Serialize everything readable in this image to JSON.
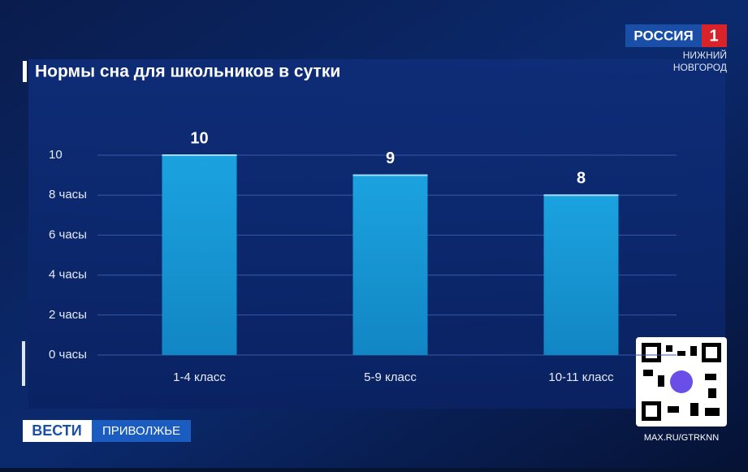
{
  "chart_data": {
    "type": "bar",
    "title": "Нормы сна для школьников в сутки",
    "categories": [
      "1-4 класс",
      "5-9 класс",
      "10-11 класс"
    ],
    "values": [
      10,
      9,
      8
    ],
    "color": "#1a9fd9",
    "ylim": [
      0,
      10
    ],
    "yticks": [
      {
        "value": 0,
        "label": "0 часы"
      },
      {
        "value": 2,
        "label": "2 часы"
      },
      {
        "value": 4,
        "label": "4 часы"
      },
      {
        "value": 6,
        "label": "6 часы"
      },
      {
        "value": 8,
        "label": "8 часы"
      },
      10
    ],
    "grid": true
  },
  "channel": {
    "name": "РОССИЯ",
    "number": "1",
    "region_line1": "НИЖНИЙ",
    "region_line2": "НОВГОРОД"
  },
  "program": {
    "name": "ВЕСТИ",
    "region": "ПРИВОЛЖЬЕ"
  },
  "qr_caption": "MAX.RU/GTRKNN"
}
